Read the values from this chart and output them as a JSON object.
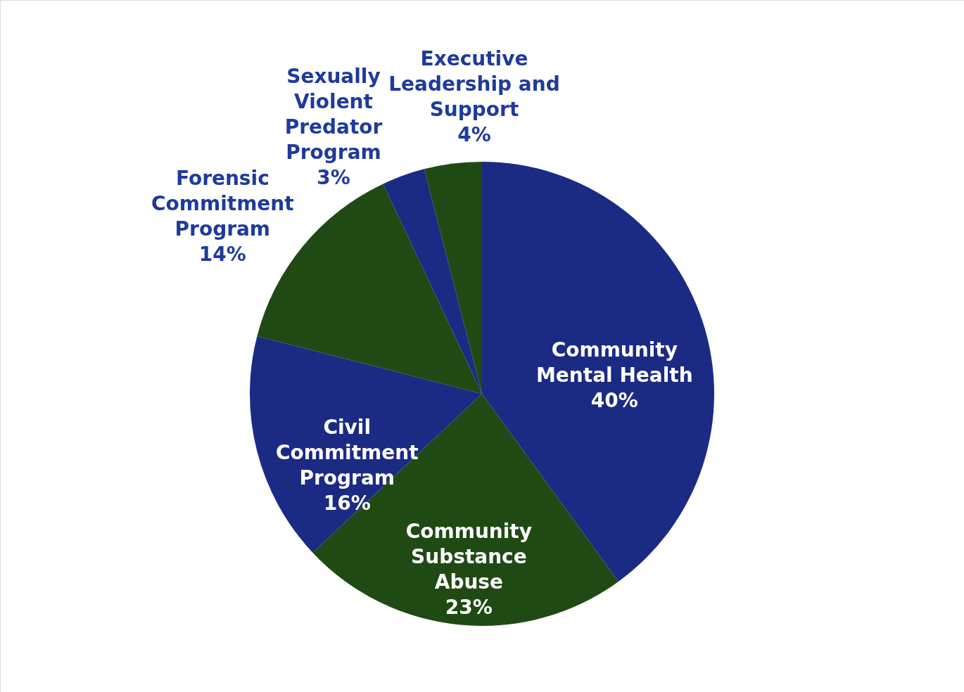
{
  "chart_data": {
    "type": "pie",
    "categories": [
      "Community Mental Health",
      "Community Substance Abuse",
      "Civil Commitment Program",
      "Forensic Commitment Program",
      "Sexually Violent Predator Program",
      "Executive Leadership and Support"
    ],
    "values": [
      40,
      23,
      16,
      14,
      3,
      4
    ],
    "value_labels": [
      "40%",
      "23%",
      "16%",
      "14%",
      "3%",
      "4%"
    ],
    "colors": [
      "#1b2b84",
      "#1f4a14",
      "#1b2b84",
      "#1f4a14",
      "#1b2b84",
      "#1f4a14"
    ]
  }
}
